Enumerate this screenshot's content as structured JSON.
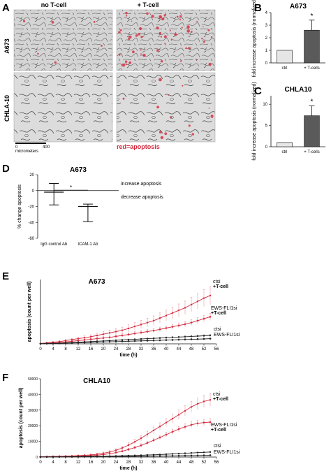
{
  "colors": {
    "red": "#d42b3f",
    "black": "#222222",
    "light_bar": "#e6e6e6",
    "dark_bar": "#5a5a5a",
    "micro_bg": "#cfcfcf"
  },
  "panel_a": {
    "letter": "A",
    "col_headers": [
      "no T-cell",
      "+ T-cell"
    ],
    "row_labels": [
      "A673",
      "CHLA-10"
    ],
    "scale_bar": {
      "min": "0",
      "max": "400",
      "unit": "micrometers"
    },
    "legend": "red=apoptosis"
  },
  "chart_data": [
    {
      "id": "B",
      "type": "bar",
      "letter": "B",
      "title": "A673",
      "ylabel": "fold increase apoptosis (normalized)",
      "categories": [
        "ctrl",
        "+ T-cells"
      ],
      "values": [
        1.0,
        2.6
      ],
      "errors": [
        0,
        0.8
      ],
      "ylim": [
        0,
        4
      ],
      "yticks": [
        0,
        1,
        2,
        3,
        4
      ],
      "annotations": [
        "*"
      ],
      "colors": [
        "#e6e6e6",
        "#5a5a5a"
      ]
    },
    {
      "id": "C",
      "type": "bar",
      "letter": "C",
      "title": "CHLA10",
      "ylabel": "fold increase apoptosis (normalized)",
      "categories": [
        "ctrl",
        "+ T-cells"
      ],
      "values": [
        1.0,
        7.3
      ],
      "errors": [
        0,
        2.3
      ],
      "ylim": [
        0,
        12
      ],
      "yticks": [
        0,
        5,
        10
      ],
      "annotations": [
        "*"
      ],
      "colors": [
        "#e6e6e6",
        "#5a5a5a"
      ]
    },
    {
      "id": "D",
      "type": "scatter",
      "letter": "D",
      "title": "A673",
      "ylabel": "% change apoptosis",
      "categories": [
        "IgG control Ab",
        "ICAM-1 Ab"
      ],
      "means": [
        -2,
        -20
      ],
      "upper": [
        9,
        -17
      ],
      "lower": [
        -18,
        -39
      ],
      "ylim": [
        -60,
        20
      ],
      "yticks": [
        20,
        0,
        -20,
        -40,
        -60
      ],
      "annotations": [
        "*",
        "increase apoptosis",
        "decrease apoptosis"
      ]
    },
    {
      "id": "E",
      "type": "line",
      "letter": "E",
      "title": "A673",
      "xlabel": "time (h)",
      "ylabel": "apoptosis (count per well)",
      "x": [
        0,
        2,
        4,
        6,
        8,
        10,
        12,
        14,
        16,
        18,
        20,
        22,
        24,
        26,
        28,
        30,
        32,
        34,
        36,
        38,
        40,
        42,
        44,
        46,
        48,
        50,
        52,
        54
      ],
      "xticks": [
        0,
        4,
        8,
        12,
        16,
        20,
        24,
        28,
        32,
        36,
        40,
        44,
        48,
        52,
        56
      ],
      "xlim": [
        0,
        56
      ],
      "ylim": [
        0,
        10
      ],
      "series": [
        {
          "name": "ctsi",
          "sub": "+T-cell",
          "color": "#d42b3f",
          "values": [
            0.05,
            0.15,
            0.25,
            0.35,
            0.5,
            0.65,
            0.8,
            0.95,
            1.1,
            1.3,
            1.5,
            1.7,
            1.9,
            2.1,
            2.4,
            2.7,
            3.0,
            3.3,
            3.6,
            4.0,
            4.4,
            4.8,
            5.2,
            5.6,
            6.1,
            6.6,
            7.1,
            7.5
          ],
          "err": [
            0.05,
            0.1,
            0.1,
            0.15,
            0.2,
            0.2,
            0.25,
            0.3,
            0.3,
            0.35,
            0.4,
            0.45,
            0.5,
            0.5,
            0.55,
            0.6,
            0.65,
            0.7,
            0.75,
            0.8,
            0.85,
            0.9,
            1.0,
            1.05,
            1.1,
            1.2,
            1.3,
            1.4
          ]
        },
        {
          "name": "EWS-FLI1si",
          "sub": "+T-cell",
          "color": "#d42b3f",
          "values": [
            0.02,
            0.1,
            0.15,
            0.2,
            0.3,
            0.4,
            0.5,
            0.6,
            0.7,
            0.8,
            0.9,
            1.0,
            1.15,
            1.3,
            1.45,
            1.6,
            1.75,
            1.9,
            2.05,
            2.25,
            2.45,
            2.65,
            2.85,
            3.05,
            3.3,
            3.6,
            3.9,
            4.2
          ],
          "err": [
            0.03,
            0.05,
            0.05,
            0.08,
            0.1,
            0.1,
            0.12,
            0.15,
            0.15,
            0.18,
            0.2,
            0.2,
            0.22,
            0.25,
            0.25,
            0.28,
            0.3,
            0.3,
            0.32,
            0.35,
            0.35,
            0.38,
            0.4,
            0.42,
            0.45,
            0.48,
            0.5,
            0.55
          ]
        },
        {
          "name": "ctsi",
          "sub": "",
          "color": "#222222",
          "values": [
            0.02,
            0.05,
            0.08,
            0.1,
            0.15,
            0.2,
            0.25,
            0.3,
            0.35,
            0.4,
            0.45,
            0.5,
            0.55,
            0.6,
            0.65,
            0.7,
            0.75,
            0.8,
            0.85,
            0.9,
            0.95,
            1.0,
            1.05,
            1.1,
            1.15,
            1.2,
            1.25,
            1.3
          ],
          "err": [
            0.02,
            0.03,
            0.03,
            0.04,
            0.05,
            0.05,
            0.06,
            0.06,
            0.07,
            0.07,
            0.08,
            0.08,
            0.09,
            0.09,
            0.1,
            0.1,
            0.11,
            0.11,
            0.12,
            0.12,
            0.13,
            0.13,
            0.14,
            0.14,
            0.15,
            0.15,
            0.16,
            0.16
          ]
        },
        {
          "name": "EWS-FLI1si",
          "sub": "",
          "color": "#222222",
          "values": [
            0.01,
            0.03,
            0.05,
            0.07,
            0.1,
            0.13,
            0.16,
            0.19,
            0.22,
            0.25,
            0.28,
            0.31,
            0.34,
            0.37,
            0.4,
            0.43,
            0.46,
            0.49,
            0.52,
            0.55,
            0.58,
            0.61,
            0.64,
            0.67,
            0.7,
            0.73,
            0.76,
            0.8
          ],
          "err": [
            0.01,
            0.02,
            0.02,
            0.03,
            0.03,
            0.04,
            0.04,
            0.04,
            0.05,
            0.05,
            0.05,
            0.06,
            0.06,
            0.06,
            0.07,
            0.07,
            0.07,
            0.08,
            0.08,
            0.08,
            0.09,
            0.09,
            0.09,
            0.1,
            0.1,
            0.1,
            0.11,
            0.11
          ]
        }
      ]
    },
    {
      "id": "F",
      "type": "line",
      "letter": "F",
      "title": "CHLA10",
      "xlabel": "time (h)",
      "ylabel": "apoptosis (count per well)",
      "x": [
        0,
        2,
        4,
        6,
        8,
        10,
        12,
        14,
        16,
        18,
        20,
        22,
        24,
        26,
        28,
        30,
        32,
        34,
        36,
        38,
        40,
        42,
        44,
        46,
        48,
        50,
        52,
        54
      ],
      "xticks": [
        0,
        4,
        8,
        12,
        16,
        20,
        24,
        28,
        32,
        36,
        40,
        44,
        48,
        52,
        56
      ],
      "yticks": [
        0,
        10000,
        20000,
        30000,
        40000,
        50000
      ],
      "xlim": [
        0,
        56
      ],
      "ylim": [
        0,
        50000
      ],
      "series": [
        {
          "name": "ctsi",
          "sub": "+T-cell",
          "color": "#d42b3f",
          "values": [
            200,
            300,
            400,
            500,
            600,
            700,
            900,
            1100,
            1400,
            1800,
            2400,
            3200,
            4300,
            5800,
            7600,
            9700,
            12000,
            14500,
            17000,
            19500,
            22000,
            24500,
            27000,
            29500,
            32000,
            34000,
            35500,
            36500
          ],
          "err": [
            100,
            150,
            200,
            250,
            300,
            350,
            400,
            500,
            600,
            700,
            800,
            900,
            1000,
            1200,
            1400,
            1600,
            1800,
            2000,
            2200,
            2400,
            2600,
            2800,
            3000,
            3200,
            3400,
            3600,
            3800,
            4000
          ]
        },
        {
          "name": "EWS-FLI1si",
          "sub": "+T-cell",
          "color": "#d42b3f",
          "values": [
            100,
            150,
            200,
            250,
            300,
            400,
            500,
            700,
            900,
            1200,
            1600,
            2100,
            2800,
            3700,
            4800,
            6000,
            7400,
            9000,
            10700,
            12500,
            14300,
            16100,
            17800,
            19300,
            20600,
            21500,
            22000,
            22300
          ],
          "err": [
            50,
            80,
            100,
            150,
            200,
            250,
            300,
            350,
            400,
            450,
            500,
            600,
            700,
            800,
            900,
            1000,
            1100,
            1200,
            1300,
            1400,
            1500,
            1600,
            1700,
            1800,
            1900,
            2000,
            2100,
            2200
          ]
        },
        {
          "name": "ctsi",
          "sub": "",
          "color": "#222222",
          "values": [
            50,
            80,
            100,
            150,
            200,
            250,
            300,
            350,
            400,
            450,
            500,
            600,
            700,
            800,
            900,
            1000,
            1150,
            1300,
            1450,
            1600,
            1800,
            2000,
            2200,
            2400,
            2600,
            2800,
            3000,
            3200
          ],
          "err": [
            30,
            40,
            50,
            60,
            70,
            80,
            90,
            100,
            110,
            120,
            130,
            140,
            150,
            160,
            170,
            180,
            190,
            200,
            210,
            220,
            230,
            240,
            250,
            260,
            270,
            280,
            290,
            300
          ]
        },
        {
          "name": "EWS-FLI1si",
          "sub": "",
          "color": "#222222",
          "values": [
            30,
            50,
            70,
            90,
            110,
            130,
            150,
            180,
            210,
            240,
            270,
            300,
            340,
            380,
            420,
            460,
            500,
            550,
            600,
            650,
            700,
            760,
            820,
            880,
            940,
            1000,
            1080,
            1150
          ],
          "err": [
            20,
            25,
            30,
            35,
            40,
            45,
            50,
            55,
            60,
            65,
            70,
            75,
            80,
            85,
            90,
            95,
            100,
            105,
            110,
            115,
            120,
            125,
            130,
            135,
            140,
            145,
            150,
            155
          ]
        }
      ]
    }
  ]
}
